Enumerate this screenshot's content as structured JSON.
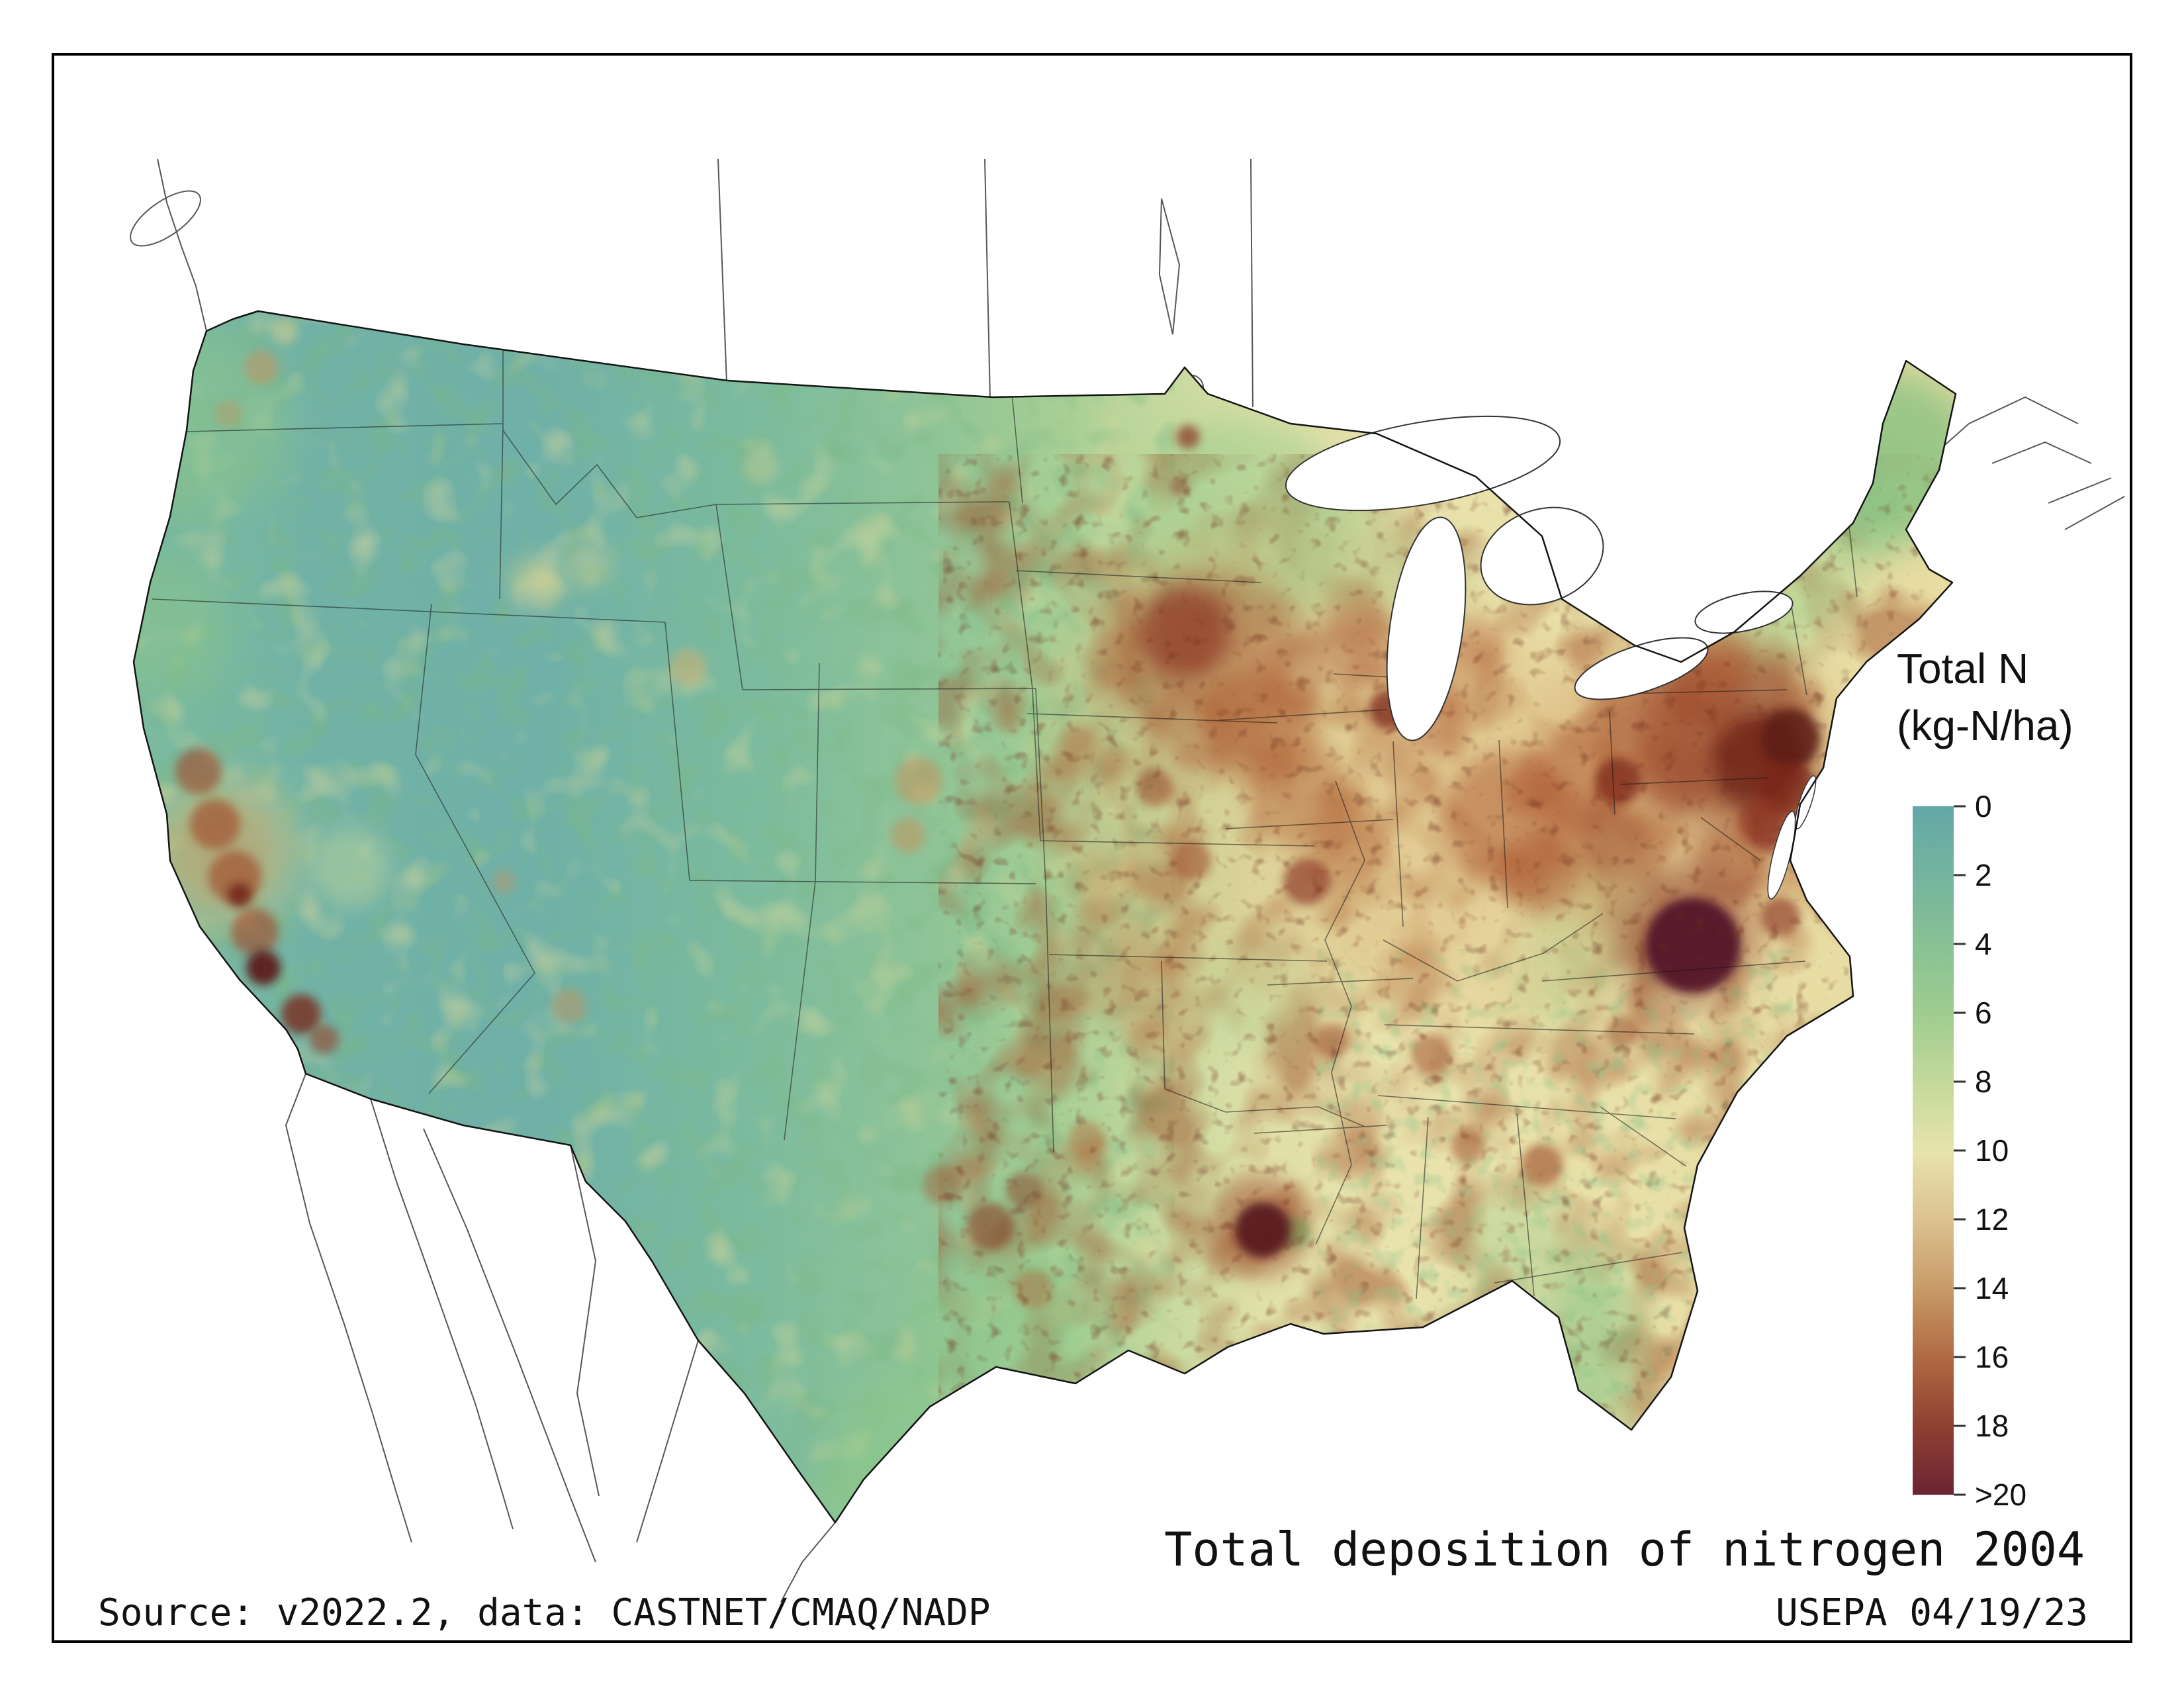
{
  "legend": {
    "title": [
      "Total N",
      "(kg-N/ha)"
    ],
    "ticks": [
      "0",
      "2",
      "4",
      "6",
      "8",
      "10",
      "12",
      "14",
      "16",
      "18",
      ">20"
    ],
    "colors": [
      "#62a8a8",
      "#74b49e",
      "#88c194",
      "#9fcc8f",
      "#c3d99b",
      "#e7e3ad",
      "#dcc291",
      "#c89b67",
      "#b06a42",
      "#8f4031",
      "#6b2433"
    ]
  },
  "captions": {
    "title": "Total deposition of nitrogen 2004",
    "source": "Source: v2022.2, data: CASTNET/CMAQ/NADP",
    "credit": "USEPA 04/19/23"
  }
}
